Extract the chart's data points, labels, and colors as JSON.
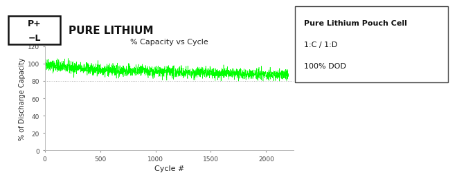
{
  "title": "% Capacity vs Cycle",
  "xlabel": "Cycle #",
  "ylabel": "% of Discharge Capacity",
  "xlim": [
    0,
    2250
  ],
  "ylim": [
    0,
    120
  ],
  "yticks": [
    0,
    20,
    40,
    60,
    80,
    100,
    120
  ],
  "xticks": [
    0,
    500,
    1000,
    1500,
    2000
  ],
  "line_color": "#00FF00",
  "hline_y": 80,
  "hline_color": "#aaaaaa",
  "n_cycles": 2200,
  "capacity_start": 96,
  "capacity_end": 87,
  "noise_amplitude_early": 3.5,
  "noise_amplitude_late": 3.0,
  "legend_title": "Pure Lithium Pouch Cell",
  "legend_line1": "1:C / 1:D",
  "legend_line2": "100% DOD",
  "company_name": "PURE LITHIUM",
  "background_color": "#ffffff",
  "title_fontsize": 8,
  "axis_fontsize": 7,
  "tick_fontsize": 6.5,
  "label_fontsize": 8,
  "legend_fontsize": 8
}
